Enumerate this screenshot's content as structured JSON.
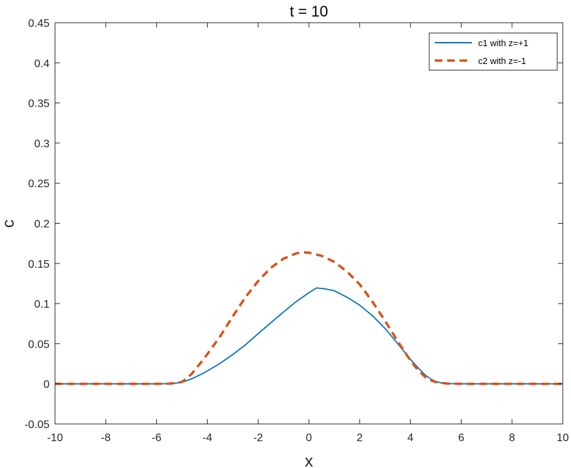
{
  "chart_data": {
    "type": "line",
    "title": "t = 10",
    "xlabel": "x",
    "ylabel": "c",
    "xlim": [
      -10,
      10
    ],
    "ylim": [
      -0.05,
      0.45
    ],
    "xticks": [
      -10,
      -8,
      -6,
      -4,
      -2,
      0,
      2,
      4,
      6,
      8,
      10
    ],
    "xtick_labels": [
      "-10",
      "-8",
      "-6",
      "-4",
      "-2",
      "0",
      "2",
      "4",
      "6",
      "8",
      "10"
    ],
    "yticks": [
      -0.05,
      0,
      0.05,
      0.1,
      0.15,
      0.2,
      0.25,
      0.3,
      0.35,
      0.4,
      0.45
    ],
    "ytick_labels": [
      "-0.05",
      "0",
      "0.05",
      "0.1",
      "0.15",
      "0.2",
      "0.25",
      "0.3",
      "0.35",
      "0.4",
      "0.45"
    ],
    "grid": false,
    "legend_position": "top-right",
    "series": [
      {
        "name": "c1 with z=+1",
        "color": "#0072BD",
        "style": "solid",
        "x": [
          -10,
          -6,
          -5.5,
          -5.2,
          -5,
          -4.8,
          -4.6,
          -4.4,
          -4.2,
          -4,
          -3.5,
          -3,
          -2.5,
          -2,
          -1.5,
          -1,
          -0.5,
          0,
          0.3,
          0.6,
          1,
          1.5,
          2,
          2.5,
          3,
          3.5,
          4,
          4.3,
          4.6,
          4.8,
          5,
          5.2,
          5.5,
          6,
          10
        ],
        "y": [
          0,
          0,
          0.0003,
          0.001,
          0.002,
          0.004,
          0.0065,
          0.0095,
          0.0125,
          0.016,
          0.0255,
          0.0365,
          0.0485,
          0.0625,
          0.076,
          0.0895,
          0.1025,
          0.1135,
          0.1195,
          0.1185,
          0.116,
          0.108,
          0.098,
          0.085,
          0.069,
          0.05,
          0.0305,
          0.02,
          0.0105,
          0.006,
          0.003,
          0.0012,
          0.0003,
          0,
          0
        ]
      },
      {
        "name": "c2 with z=-1",
        "color": "#D95319",
        "style": "dashed",
        "x": [
          -10,
          -6,
          -5.5,
          -5.2,
          -5,
          -4.8,
          -4.6,
          -4.4,
          -4.2,
          -4,
          -3.5,
          -3,
          -2.5,
          -2,
          -1.5,
          -1,
          -0.5,
          -0.3,
          0,
          0.5,
          1,
          1.5,
          2,
          2.5,
          3,
          3.5,
          4,
          4.3,
          4.6,
          4.8,
          5,
          5.2,
          5.5,
          6,
          10
        ],
        "y": [
          0,
          0,
          0.0003,
          0.001,
          0.0025,
          0.007,
          0.013,
          0.021,
          0.0285,
          0.037,
          0.059,
          0.084,
          0.108,
          0.128,
          0.1445,
          0.156,
          0.1625,
          0.164,
          0.1635,
          0.1595,
          0.152,
          0.14,
          0.124,
          0.1025,
          0.0785,
          0.053,
          0.029,
          0.017,
          0.008,
          0.0045,
          0.0022,
          0.001,
          0.0003,
          0,
          0
        ]
      }
    ]
  }
}
